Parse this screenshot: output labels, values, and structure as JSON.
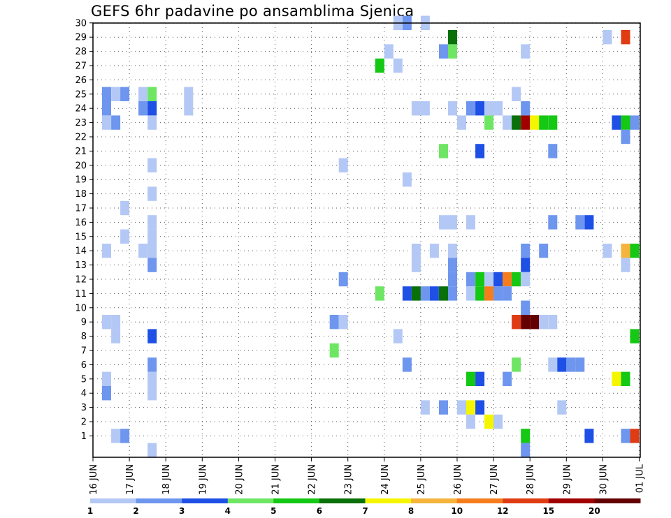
{
  "title": "GEFS 6hr padavine po ansamblima Sjenica",
  "chart_data": {
    "type": "heatmap",
    "title": "GEFS 6hr padavine po ansamblima Sjenica",
    "y_ticks": [
      1,
      2,
      3,
      4,
      5,
      6,
      7,
      8,
      9,
      10,
      11,
      12,
      13,
      14,
      15,
      16,
      17,
      18,
      19,
      20,
      21,
      22,
      23,
      24,
      25,
      26,
      27,
      28,
      29,
      30
    ],
    "x_ticks": [
      "16 JUN",
      "17 JUN",
      "18 JUN",
      "19 JUN",
      "20 JUN",
      "21 JUN",
      "22 JUN",
      "23 JUN",
      "24 JUN",
      "25 JUN",
      "26 JUN",
      "27 JUN",
      "28 JUN",
      "29 JUN",
      "30 JUN",
      "01 JUL"
    ],
    "grid": true,
    "legend_placement": "bottom",
    "legend": {
      "labels": [
        "1",
        "2",
        "3",
        "4",
        "5",
        "6",
        "7",
        "8",
        "10",
        "12",
        "15",
        "20"
      ],
      "colors": [
        "#b4c8f5",
        "#6e96ee",
        "#1e50e6",
        "#6ee664",
        "#14c814",
        "#0a700a",
        "#f5f500",
        "#f5b43c",
        "#f57d1e",
        "#e03c14",
        "#a00000",
        "#640000"
      ]
    },
    "cells_note": "each cell: [day index from 16 JUN (step 0.25 = 6h), member 0-30, color index 0-11]",
    "cells": [
      [
        0.25,
        25,
        1
      ],
      [
        0.25,
        24,
        1
      ],
      [
        0.25,
        23,
        0
      ],
      [
        0.25,
        14,
        0
      ],
      [
        0.25,
        9,
        0
      ],
      [
        0.25,
        5,
        0
      ],
      [
        0.25,
        4,
        1
      ],
      [
        0.5,
        25,
        0
      ],
      [
        0.5,
        23,
        1
      ],
      [
        0.5,
        9,
        0
      ],
      [
        0.5,
        8,
        0
      ],
      [
        0.5,
        1,
        0
      ],
      [
        0.75,
        25,
        1
      ],
      [
        0.75,
        17,
        0
      ],
      [
        0.75,
        15,
        0
      ],
      [
        0.75,
        1,
        1
      ],
      [
        1.25,
        25,
        0
      ],
      [
        1.25,
        24,
        1
      ],
      [
        1.25,
        14,
        0
      ],
      [
        1.5,
        25,
        3
      ],
      [
        1.5,
        24,
        2
      ],
      [
        1.5,
        23,
        0
      ],
      [
        1.5,
        20,
        0
      ],
      [
        1.5,
        18,
        0
      ],
      [
        1.5,
        16,
        0
      ],
      [
        1.5,
        15,
        0
      ],
      [
        1.5,
        14,
        0
      ],
      [
        1.5,
        13,
        1
      ],
      [
        1.5,
        8,
        2
      ],
      [
        1.5,
        6,
        1
      ],
      [
        1.5,
        5,
        0
      ],
      [
        1.5,
        4,
        0
      ],
      [
        1.5,
        0,
        0
      ],
      [
        2.5,
        25,
        0
      ],
      [
        2.5,
        24,
        0
      ],
      [
        6.5,
        9,
        1
      ],
      [
        6.5,
        7,
        3
      ],
      [
        6.75,
        20,
        0
      ],
      [
        6.75,
        12,
        1
      ],
      [
        6.75,
        9,
        0
      ],
      [
        7.75,
        27,
        4
      ],
      [
        7.75,
        11,
        3
      ],
      [
        8.0,
        28,
        0
      ],
      [
        8.25,
        30,
        0
      ],
      [
        8.25,
        27,
        0
      ],
      [
        8.25,
        8,
        0
      ],
      [
        8.5,
        30,
        1
      ],
      [
        8.5,
        19,
        0
      ],
      [
        8.5,
        11,
        2
      ],
      [
        8.5,
        6,
        1
      ],
      [
        8.75,
        24,
        0
      ],
      [
        8.75,
        14,
        0
      ],
      [
        8.75,
        13,
        0
      ],
      [
        8.75,
        11,
        5
      ],
      [
        9.0,
        30,
        0
      ],
      [
        9.0,
        24,
        0
      ],
      [
        9.0,
        11,
        1
      ],
      [
        9.0,
        3,
        0
      ],
      [
        9.25,
        14,
        0
      ],
      [
        9.25,
        11,
        2
      ],
      [
        9.5,
        28,
        1
      ],
      [
        9.5,
        21,
        3
      ],
      [
        9.5,
        16,
        0
      ],
      [
        9.5,
        11,
        5
      ],
      [
        9.5,
        3,
        1
      ],
      [
        9.75,
        29,
        5
      ],
      [
        9.75,
        28,
        3
      ],
      [
        9.75,
        24,
        0
      ],
      [
        9.75,
        16,
        0
      ],
      [
        9.75,
        14,
        0
      ],
      [
        9.75,
        13,
        1
      ],
      [
        9.75,
        12,
        1
      ],
      [
        9.75,
        11,
        1
      ],
      [
        10.0,
        23,
        0
      ],
      [
        10.0,
        3,
        0
      ],
      [
        10.25,
        24,
        1
      ],
      [
        10.25,
        16,
        0
      ],
      [
        10.25,
        12,
        1
      ],
      [
        10.25,
        11,
        0
      ],
      [
        10.25,
        5,
        4
      ],
      [
        10.25,
        3,
        6
      ],
      [
        10.25,
        2,
        0
      ],
      [
        10.5,
        24,
        2
      ],
      [
        10.5,
        21,
        2
      ],
      [
        10.5,
        12,
        4
      ],
      [
        10.5,
        11,
        4
      ],
      [
        10.5,
        5,
        2
      ],
      [
        10.5,
        3,
        2
      ],
      [
        10.75,
        24,
        0
      ],
      [
        10.75,
        23,
        3
      ],
      [
        10.75,
        12,
        0
      ],
      [
        10.75,
        11,
        8
      ],
      [
        10.75,
        2,
        6
      ],
      [
        11.0,
        24,
        0
      ],
      [
        11.0,
        12,
        2
      ],
      [
        11.0,
        11,
        1
      ],
      [
        11.0,
        2,
        0
      ],
      [
        11.25,
        23,
        0
      ],
      [
        11.25,
        12,
        8
      ],
      [
        11.25,
        11,
        1
      ],
      [
        11.25,
        5,
        1
      ],
      [
        11.5,
        25,
        0
      ],
      [
        11.5,
        23,
        5
      ],
      [
        11.5,
        12,
        4
      ],
      [
        11.5,
        9,
        9
      ],
      [
        11.5,
        6,
        3
      ],
      [
        11.75,
        28,
        0
      ],
      [
        11.75,
        24,
        1
      ],
      [
        11.75,
        23,
        10
      ],
      [
        11.75,
        14,
        1
      ],
      [
        11.75,
        13,
        2
      ],
      [
        11.75,
        12,
        0
      ],
      [
        11.75,
        10,
        1
      ],
      [
        11.75,
        9,
        11
      ],
      [
        11.75,
        1,
        4
      ],
      [
        11.75,
        0,
        1
      ],
      [
        12.0,
        23,
        6
      ],
      [
        12.0,
        9,
        11
      ],
      [
        12.25,
        23,
        4
      ],
      [
        12.25,
        14,
        1
      ],
      [
        12.25,
        9,
        0
      ],
      [
        12.5,
        23,
        4
      ],
      [
        12.5,
        21,
        1
      ],
      [
        12.5,
        16,
        1
      ],
      [
        12.5,
        9,
        0
      ],
      [
        12.5,
        6,
        0
      ],
      [
        12.75,
        6,
        2
      ],
      [
        12.75,
        3,
        0
      ],
      [
        13.0,
        6,
        1
      ],
      [
        13.25,
        16,
        1
      ],
      [
        13.25,
        6,
        1
      ],
      [
        13.5,
        16,
        2
      ],
      [
        13.5,
        1,
        2
      ],
      [
        14.0,
        29,
        0
      ],
      [
        14.0,
        14,
        0
      ],
      [
        14.25,
        23,
        2
      ],
      [
        14.25,
        5,
        6
      ],
      [
        14.5,
        29,
        9
      ],
      [
        14.5,
        23,
        4
      ],
      [
        14.5,
        22,
        1
      ],
      [
        14.5,
        14,
        7
      ],
      [
        14.5,
        13,
        0
      ],
      [
        14.5,
        5,
        4
      ],
      [
        14.5,
        1,
        1
      ],
      [
        14.75,
        23,
        1
      ],
      [
        14.75,
        14,
        4
      ],
      [
        14.75,
        8,
        4
      ],
      [
        14.75,
        1,
        9
      ]
    ]
  }
}
